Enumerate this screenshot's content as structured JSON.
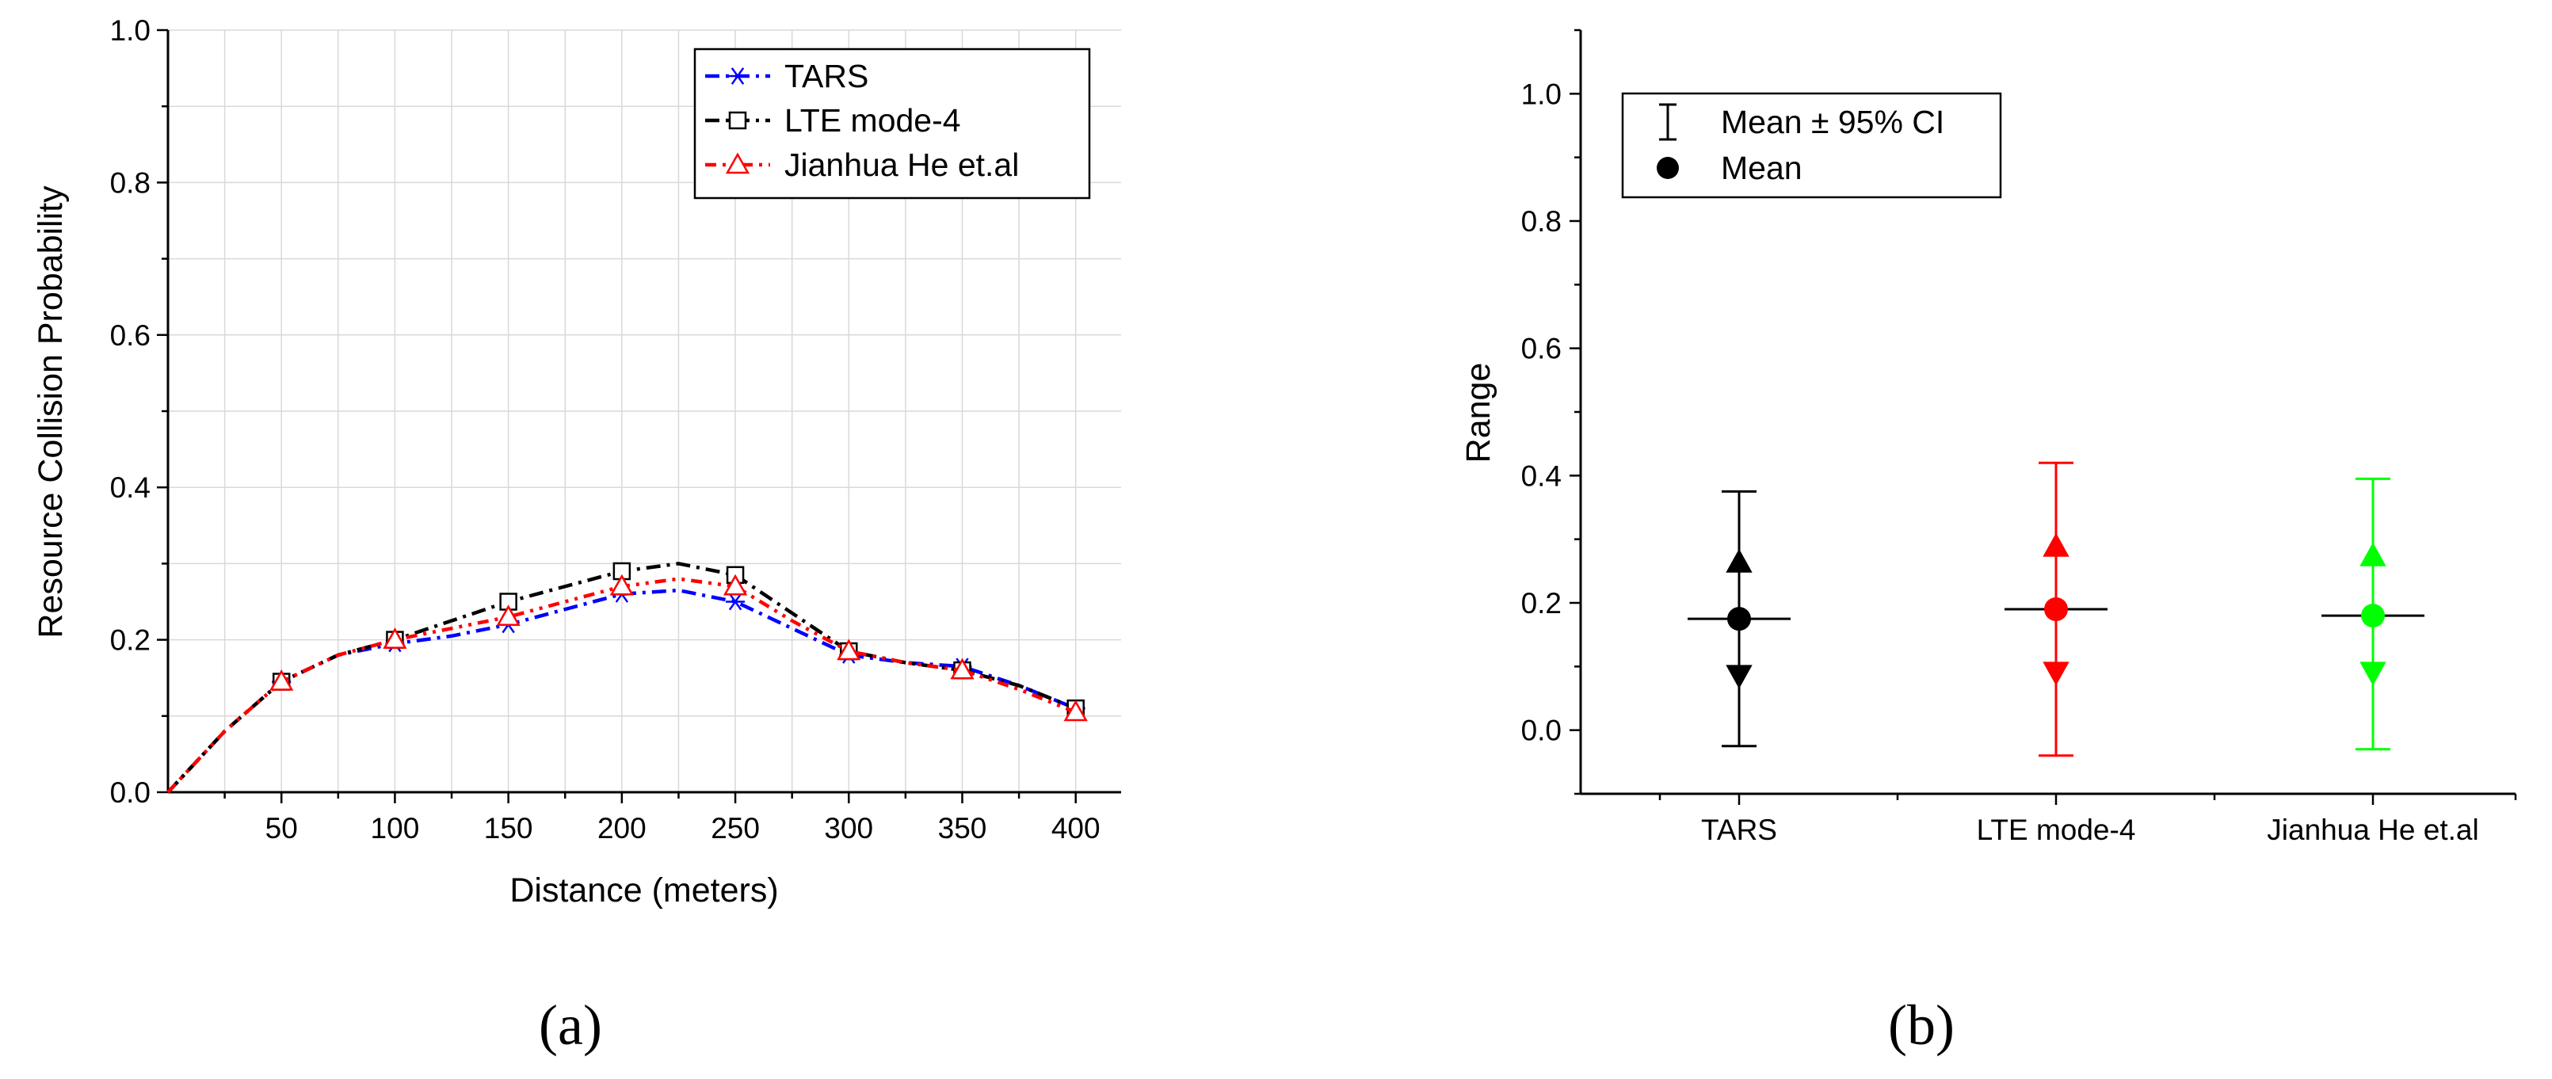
{
  "chart_data": [
    {
      "type": "line",
      "title": "",
      "xlabel": "Distance (meters)",
      "ylabel": "Resource Collision Probability",
      "xlim": [
        0,
        420
      ],
      "ylim": [
        0,
        1.0
      ],
      "x_ticks": [
        50,
        100,
        150,
        200,
        250,
        300,
        350,
        400
      ],
      "y_ticks": [
        0.0,
        0.2,
        0.4,
        0.6,
        0.8,
        1.0
      ],
      "y_tick_labels": [
        "0.0",
        "0.2",
        "0.4",
        "0.6",
        "0.8",
        "1.0"
      ],
      "grid": true,
      "legend_position": "top-right",
      "x": [
        0,
        50,
        100,
        150,
        200,
        250,
        300,
        350,
        400
      ],
      "series": [
        {
          "name": "TARS",
          "color": "#0000ff",
          "marker": "asterisk",
          "values": [
            0.0,
            0.145,
            0.195,
            0.22,
            0.26,
            0.25,
            0.18,
            0.165,
            0.11
          ],
          "curve": [
            [
              0,
              0.0
            ],
            [
              25,
              0.08
            ],
            [
              50,
              0.145
            ],
            [
              75,
              0.18
            ],
            [
              100,
              0.195
            ],
            [
              125,
              0.205
            ],
            [
              150,
              0.22
            ],
            [
              175,
              0.24
            ],
            [
              200,
              0.26
            ],
            [
              225,
              0.265
            ],
            [
              250,
              0.25
            ],
            [
              275,
              0.215
            ],
            [
              300,
              0.18
            ],
            [
              325,
              0.17
            ],
            [
              350,
              0.165
            ],
            [
              375,
              0.14
            ],
            [
              400,
              0.11
            ]
          ]
        },
        {
          "name": "LTE mode-4",
          "color": "#000000",
          "marker": "square",
          "values": [
            0.0,
            0.145,
            0.2,
            0.25,
            0.29,
            0.285,
            0.185,
            0.16,
            0.11
          ],
          "curve": [
            [
              0,
              0.0
            ],
            [
              25,
              0.08
            ],
            [
              50,
              0.145
            ],
            [
              75,
              0.18
            ],
            [
              100,
              0.2
            ],
            [
              125,
              0.225
            ],
            [
              150,
              0.25
            ],
            [
              175,
              0.27
            ],
            [
              200,
              0.29
            ],
            [
              225,
              0.3
            ],
            [
              250,
              0.285
            ],
            [
              275,
              0.235
            ],
            [
              300,
              0.185
            ],
            [
              325,
              0.17
            ],
            [
              350,
              0.16
            ],
            [
              375,
              0.14
            ],
            [
              400,
              0.11
            ]
          ]
        },
        {
          "name": "Jianhua He et.al",
          "color": "#ff0000",
          "marker": "triangle",
          "values": [
            0.0,
            0.145,
            0.2,
            0.23,
            0.27,
            0.27,
            0.185,
            0.16,
            0.105
          ],
          "curve": [
            [
              0,
              0.0
            ],
            [
              25,
              0.08
            ],
            [
              50,
              0.145
            ],
            [
              75,
              0.18
            ],
            [
              100,
              0.2
            ],
            [
              125,
              0.215
            ],
            [
              150,
              0.23
            ],
            [
              175,
              0.25
            ],
            [
              200,
              0.27
            ],
            [
              225,
              0.28
            ],
            [
              250,
              0.27
            ],
            [
              275,
              0.225
            ],
            [
              300,
              0.185
            ],
            [
              325,
              0.17
            ],
            [
              350,
              0.16
            ],
            [
              375,
              0.135
            ],
            [
              400,
              0.105
            ]
          ]
        }
      ],
      "panel_label": "(a)"
    },
    {
      "type": "errorbar",
      "title": "",
      "xlabel": "",
      "ylabel": "Range",
      "ylim": [
        -0.1,
        1.1
      ],
      "y_ticks": [
        0.0,
        0.2,
        0.4,
        0.6,
        0.8,
        1.0
      ],
      "y_tick_labels": [
        "0.0",
        "0.2",
        "0.4",
        "0.6",
        "0.8",
        "1.0"
      ],
      "grid": false,
      "legend_position": "top-left",
      "legend": [
        "Mean ± 95% CI",
        "Mean"
      ],
      "categories": [
        "TARS",
        "LTE mode-4",
        "Jianhua He et.al"
      ],
      "series": [
        {
          "name": "TARS",
          "color": "#000000",
          "mean": 0.175,
          "ci_low": -0.025,
          "ci_high": 0.375,
          "upper_marker": 0.26,
          "lower_marker": 0.09
        },
        {
          "name": "LTE mode-4",
          "color": "#ff0000",
          "mean": 0.19,
          "ci_low": -0.04,
          "ci_high": 0.42,
          "upper_marker": 0.285,
          "lower_marker": 0.095
        },
        {
          "name": "Jianhua He et.al",
          "color": "#00ff00",
          "mean": 0.18,
          "ci_low": -0.03,
          "ci_high": 0.395,
          "upper_marker": 0.27,
          "lower_marker": 0.095
        }
      ],
      "panel_label": "(b)"
    }
  ]
}
